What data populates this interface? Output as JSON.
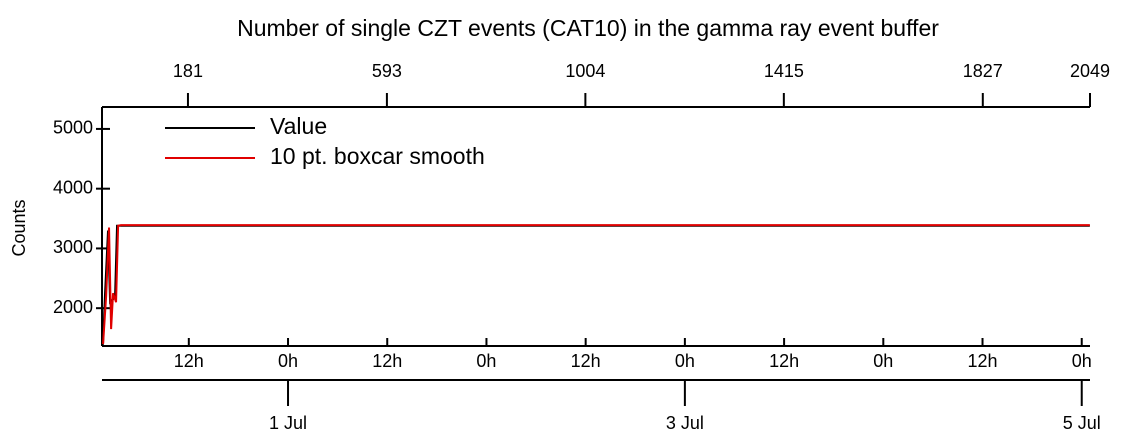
{
  "chart_data": {
    "type": "line",
    "title": "Number of single CZT events (CAT10) in the gamma ray event buffer",
    "ylabel": "Counts",
    "xlim": [
      -22.5,
      97
    ],
    "xticks": [
      {
        "value": -12,
        "label": "12h"
      },
      {
        "value": 0,
        "label": "0h"
      },
      {
        "value": 12,
        "label": "12h"
      },
      {
        "value": 24,
        "label": "0h"
      },
      {
        "value": 36,
        "label": "12h"
      },
      {
        "value": 48,
        "label": "0h"
      },
      {
        "value": 60,
        "label": "12h"
      },
      {
        "value": 72,
        "label": "0h"
      },
      {
        "value": 84,
        "label": "12h"
      },
      {
        "value": 96,
        "label": "0h"
      }
    ],
    "date_ticks": [
      {
        "value": 0,
        "label": "1 Jul"
      },
      {
        "value": 48,
        "label": "3 Jul"
      },
      {
        "value": 96,
        "label": "5 Jul"
      }
    ],
    "x2lim": [
      3,
      2049
    ],
    "x2ticks": [
      181,
      593,
      1004,
      1415,
      1827,
      2049
    ],
    "ylim": [
      1367,
      5367
    ],
    "yticks": [
      2000,
      3000,
      4000,
      5000
    ],
    "legend": "upper left",
    "series": [
      {
        "name": "Value",
        "color": "#000000",
        "x": [
          -22.45,
          -22.37,
          -22.13,
          -21.77,
          -21.52,
          -21.16,
          -20.92,
          -20.68,
          -20.31,
          96.98
        ],
        "values": [
          1370,
          1420,
          2250,
          3300,
          2100,
          2150,
          2200,
          3380,
          3380,
          3380
        ]
      },
      {
        "name": "10 pt. boxcar smooth",
        "color": "#e00000",
        "x": [
          -22.37,
          -22.0,
          -21.65,
          -21.4,
          -21.16,
          -20.8,
          -20.55,
          -20.2,
          96.98
        ],
        "values": [
          1400,
          2200,
          3350,
          1650,
          2250,
          2100,
          3380,
          3390,
          3390
        ]
      }
    ]
  }
}
